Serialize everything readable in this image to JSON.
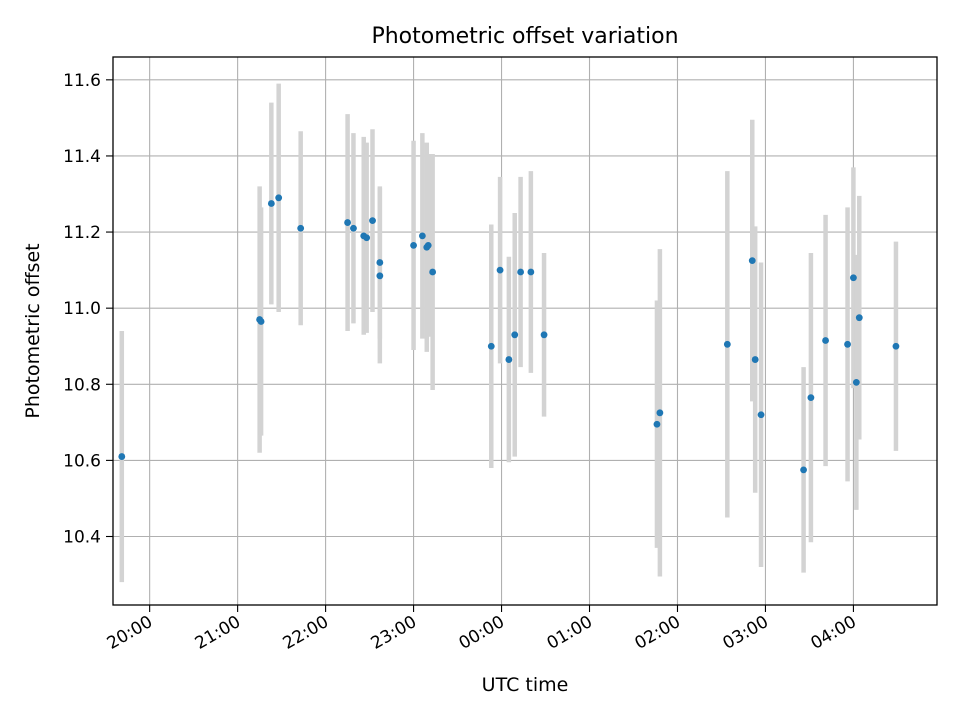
{
  "chart_data": {
    "type": "scatter",
    "title": "Photometric offset variation",
    "xlabel": "UTC time",
    "ylabel": "Photometric offset",
    "x_ticks": [
      "20:00",
      "21:00",
      "22:00",
      "23:00",
      "00:00",
      "01:00",
      "02:00",
      "03:00",
      "04:00"
    ],
    "y_ticks": [
      "10.4",
      "10.6",
      "10.8",
      "11.0",
      "11.2",
      "11.4",
      "11.6"
    ],
    "xlim": [
      "19:35",
      "04:57"
    ],
    "ylim": [
      10.22,
      11.66
    ],
    "grid": true,
    "colors": {
      "point": "#1f77b4",
      "errorbar": "#d3d3d3",
      "grid": "#b0b0b0"
    },
    "points": [
      {
        "t": "19:41",
        "y": 10.61,
        "err": 0.33
      },
      {
        "t": "21:15",
        "y": 10.97,
        "err": 0.35
      },
      {
        "t": "21:16",
        "y": 10.965,
        "err": 0.3
      },
      {
        "t": "21:23",
        "y": 11.275,
        "err": 0.265
      },
      {
        "t": "21:28",
        "y": 11.29,
        "err": 0.3
      },
      {
        "t": "21:43",
        "y": 11.21,
        "err": 0.255
      },
      {
        "t": "22:15",
        "y": 11.225,
        "err": 0.285
      },
      {
        "t": "22:19",
        "y": 11.21,
        "err": 0.25
      },
      {
        "t": "22:26",
        "y": 11.19,
        "err": 0.26
      },
      {
        "t": "22:28",
        "y": 11.185,
        "err": 0.25
      },
      {
        "t": "22:32",
        "y": 11.23,
        "err": 0.24
      },
      {
        "t": "22:37",
        "y": 11.12,
        "err": 0.2
      },
      {
        "t": "22:37",
        "y": 11.085,
        "err": 0.23
      },
      {
        "t": "23:00",
        "y": 11.165,
        "err": 0.275
      },
      {
        "t": "23:06",
        "y": 11.19,
        "err": 0.27
      },
      {
        "t": "23:09",
        "y": 11.16,
        "err": 0.275
      },
      {
        "t": "23:10",
        "y": 11.165,
        "err": 0.24
      },
      {
        "t": "23:13",
        "y": 11.095,
        "err": 0.31
      },
      {
        "t": "23:53",
        "y": 10.9,
        "err": 0.32
      },
      {
        "t": "23:59",
        "y": 11.1,
        "err": 0.245
      },
      {
        "t": "00:05",
        "y": 10.865,
        "err": 0.27
      },
      {
        "t": "00:09",
        "y": 10.93,
        "err": 0.32
      },
      {
        "t": "00:13",
        "y": 11.095,
        "err": 0.25
      },
      {
        "t": "00:20",
        "y": 11.095,
        "err": 0.265
      },
      {
        "t": "00:29",
        "y": 10.93,
        "err": 0.215
      },
      {
        "t": "01:46",
        "y": 10.695,
        "err": 0.325
      },
      {
        "t": "01:48",
        "y": 10.725,
        "err": 0.43
      },
      {
        "t": "02:34",
        "y": 10.905,
        "err": 0.455
      },
      {
        "t": "02:51",
        "y": 11.125,
        "err": 0.37
      },
      {
        "t": "02:53",
        "y": 10.865,
        "err": 0.35
      },
      {
        "t": "02:57",
        "y": 10.72,
        "err": 0.4
      },
      {
        "t": "03:26",
        "y": 10.575,
        "err": 0.27
      },
      {
        "t": "03:31",
        "y": 10.765,
        "err": 0.38
      },
      {
        "t": "03:41",
        "y": 10.915,
        "err": 0.33
      },
      {
        "t": "03:56",
        "y": 10.905,
        "err": 0.36
      },
      {
        "t": "04:00",
        "y": 11.08,
        "err": 0.29
      },
      {
        "t": "04:02",
        "y": 10.805,
        "err": 0.335
      },
      {
        "t": "04:04",
        "y": 10.975,
        "err": 0.32
      },
      {
        "t": "04:29",
        "y": 10.9,
        "err": 0.275
      }
    ]
  }
}
